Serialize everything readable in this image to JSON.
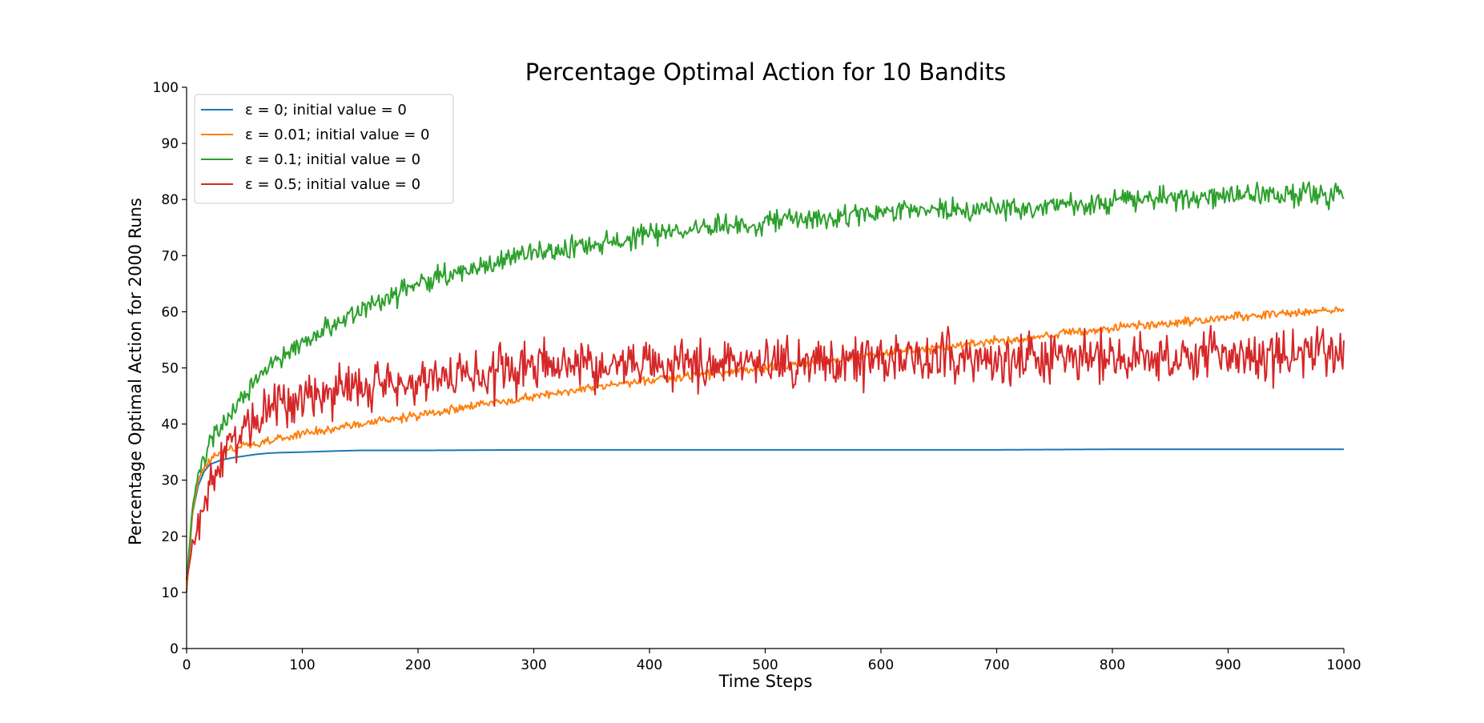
{
  "chart_data": {
    "type": "line",
    "title": "Percentage Optimal Action for 10 Bandits",
    "xlabel": "Time Steps",
    "ylabel": "Percentage Optimal Action for 2000 Runs",
    "xlim": [
      0,
      1000
    ],
    "ylim": [
      0,
      100
    ],
    "xticks": [
      0,
      100,
      200,
      300,
      400,
      500,
      600,
      700,
      800,
      900,
      1000
    ],
    "yticks": [
      0,
      10,
      20,
      30,
      40,
      50,
      60,
      70,
      80,
      90,
      100
    ],
    "grid": false,
    "legend_position": "top-left",
    "series": [
      {
        "name": "ε = 0; initial value = 0",
        "color": "#1f77b4",
        "noise": 0.0,
        "x": [
          0,
          5,
          10,
          15,
          20,
          30,
          40,
          50,
          60,
          70,
          80,
          100,
          130,
          150,
          200,
          300,
          400,
          500,
          600,
          700,
          800,
          900,
          1000
        ],
        "y": [
          10,
          24,
          29,
          31.5,
          32.8,
          33.6,
          34.0,
          34.3,
          34.6,
          34.8,
          34.9,
          35.0,
          35.2,
          35.3,
          35.3,
          35.4,
          35.4,
          35.4,
          35.4,
          35.4,
          35.5,
          35.5,
          35.5
        ]
      },
      {
        "name": "ε = 0.01; initial value = 0",
        "color": "#ff7f0e",
        "noise": 0.4,
        "x": [
          0,
          5,
          10,
          15,
          20,
          30,
          50,
          100,
          150,
          200,
          250,
          300,
          400,
          500,
          600,
          700,
          800,
          900,
          1000
        ],
        "y": [
          10,
          24,
          30,
          32.5,
          33.8,
          34.8,
          36.0,
          38.2,
          40.0,
          41.5,
          43.3,
          45.0,
          47.8,
          50.0,
          52.5,
          54.8,
          57.0,
          59.0,
          60.5
        ]
      },
      {
        "name": "ε = 0.1; initial value = 0",
        "color": "#2ca02c",
        "noise": 1.0,
        "x": [
          0,
          5,
          10,
          15,
          20,
          30,
          40,
          50,
          60,
          80,
          100,
          150,
          200,
          250,
          300,
          350,
          400,
          450,
          500,
          600,
          700,
          800,
          900,
          1000
        ],
        "y": [
          12,
          25,
          31,
          34,
          36,
          39.5,
          42.5,
          45,
          47.5,
          51.5,
          54.5,
          60.5,
          65,
          68,
          70.2,
          72,
          73.6,
          75,
          76,
          77.5,
          78.5,
          79.6,
          80.6,
          81
        ]
      },
      {
        "name": "ε = 0.5; initial value = 0",
        "color": "#d62728",
        "noise": 2.2,
        "x": [
          0,
          5,
          10,
          15,
          20,
          30,
          40,
          50,
          60,
          80,
          100,
          150,
          200,
          250,
          300,
          400,
          500,
          600,
          700,
          800,
          900,
          1000
        ],
        "y": [
          12,
          18,
          22,
          26,
          29,
          34,
          37,
          39.5,
          41.5,
          44,
          45,
          46.5,
          48,
          49,
          50,
          50.5,
          51,
          51.5,
          51.8,
          52,
          52.2,
          52.3
        ]
      }
    ]
  }
}
